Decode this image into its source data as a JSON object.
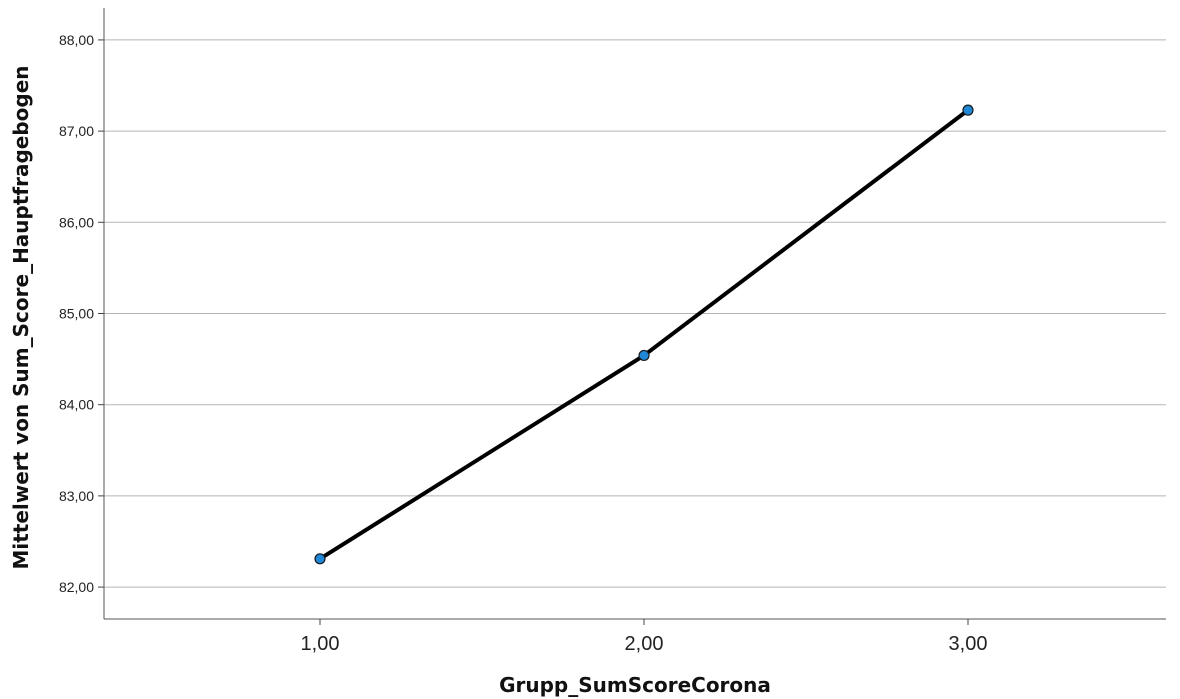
{
  "chart_data": {
    "type": "line",
    "title": "",
    "xlabel": "Grupp_SumScoreCorona",
    "ylabel": "Mittelwert von Sum_Score_Hauptfragebogen",
    "x": [
      "1,00",
      "2,00",
      "3,00"
    ],
    "series": [
      {
        "values": [
          82.31,
          84.54,
          87.23
        ]
      }
    ],
    "yticks": [
      "82,00",
      "83,00",
      "84,00",
      "85,00",
      "86,00",
      "87,00",
      "88,00"
    ],
    "ylim": [
      81.65,
      88.35
    ],
    "grid": "horizontal",
    "line_color": "#000000",
    "marker_color": "#1f88d6"
  }
}
